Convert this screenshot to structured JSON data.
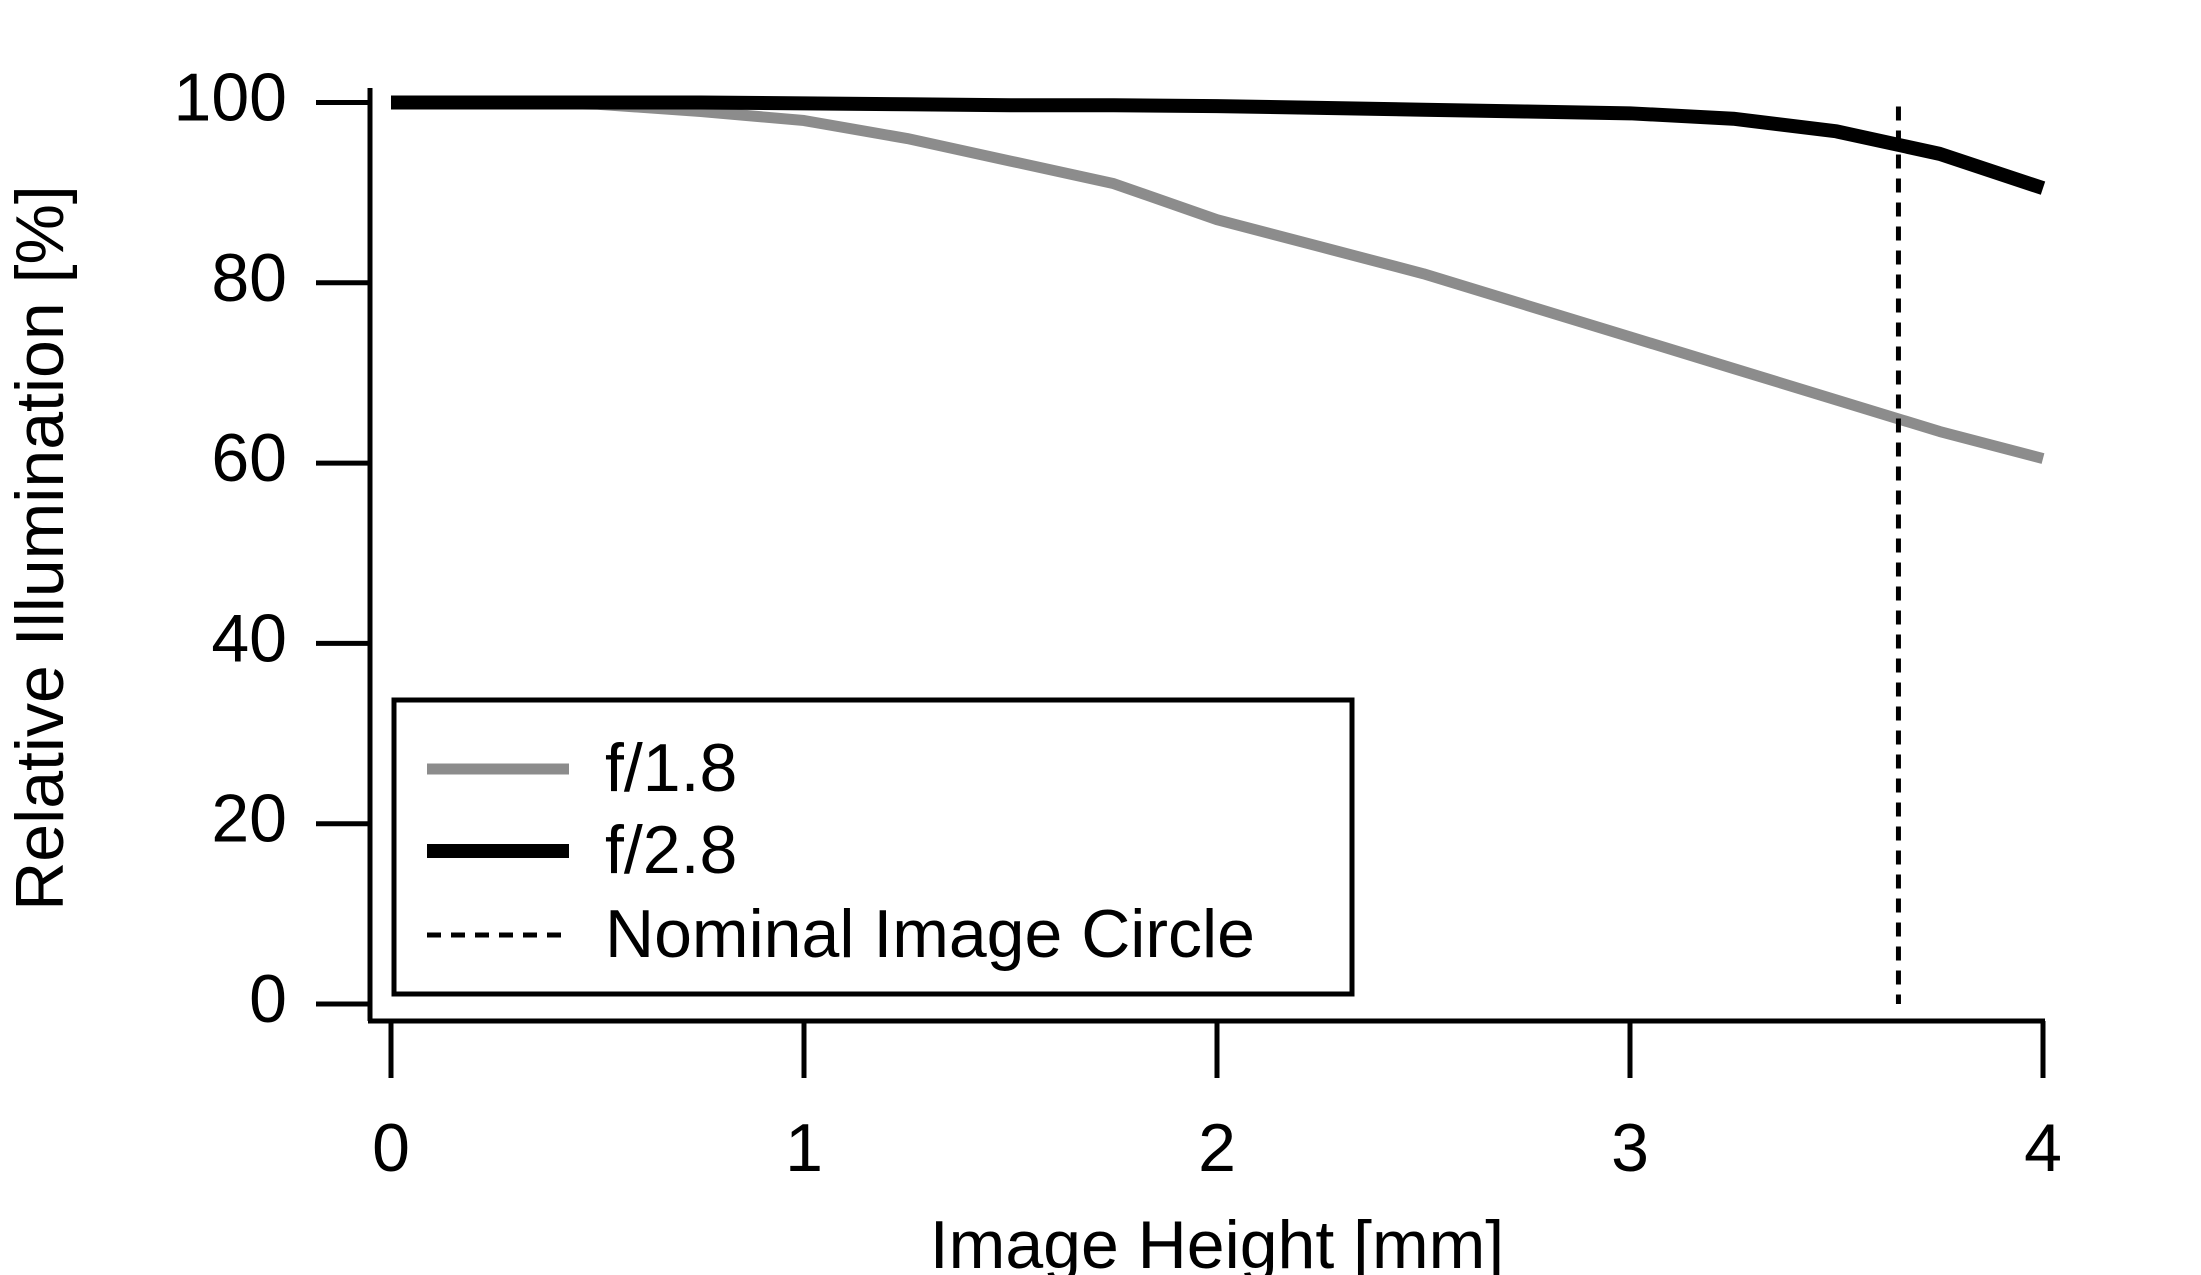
{
  "chart_data": {
    "type": "line",
    "xlabel": "Image Height [mm]",
    "ylabel": "Relative Illumination [%]",
    "x": [
      0,
      0.25,
      0.5,
      0.75,
      1,
      1.25,
      1.5,
      1.75,
      2,
      2.25,
      2.5,
      2.75,
      3,
      3.25,
      3.5,
      3.75,
      4
    ],
    "series": [
      {
        "name": "f/1.8",
        "color": "#8c8c8c",
        "values": [
          100,
          100,
          99.8,
          99,
          98,
          96,
          93.5,
          91,
          87,
          84,
          81,
          77.5,
          74,
          70.5,
          67,
          63.5,
          60.5
        ]
      },
      {
        "name": "f/2.8",
        "color": "#000000",
        "values": [
          100,
          100,
          100,
          100,
          99.9,
          99.8,
          99.7,
          99.7,
          99.6,
          99.4,
          99.2,
          99,
          98.8,
          98.2,
          96.8,
          94.3,
          90.5
        ]
      }
    ],
    "vline": {
      "name": "Nominal Image Circle",
      "x": 3.65,
      "color": "#000000"
    },
    "xlim": [
      0,
      4
    ],
    "xticks": [
      0,
      1,
      2,
      3,
      4
    ],
    "ylim": [
      0,
      100
    ],
    "yticks": [
      0,
      20,
      40,
      60,
      80,
      100
    ],
    "grid": false,
    "legend": "lower left"
  }
}
